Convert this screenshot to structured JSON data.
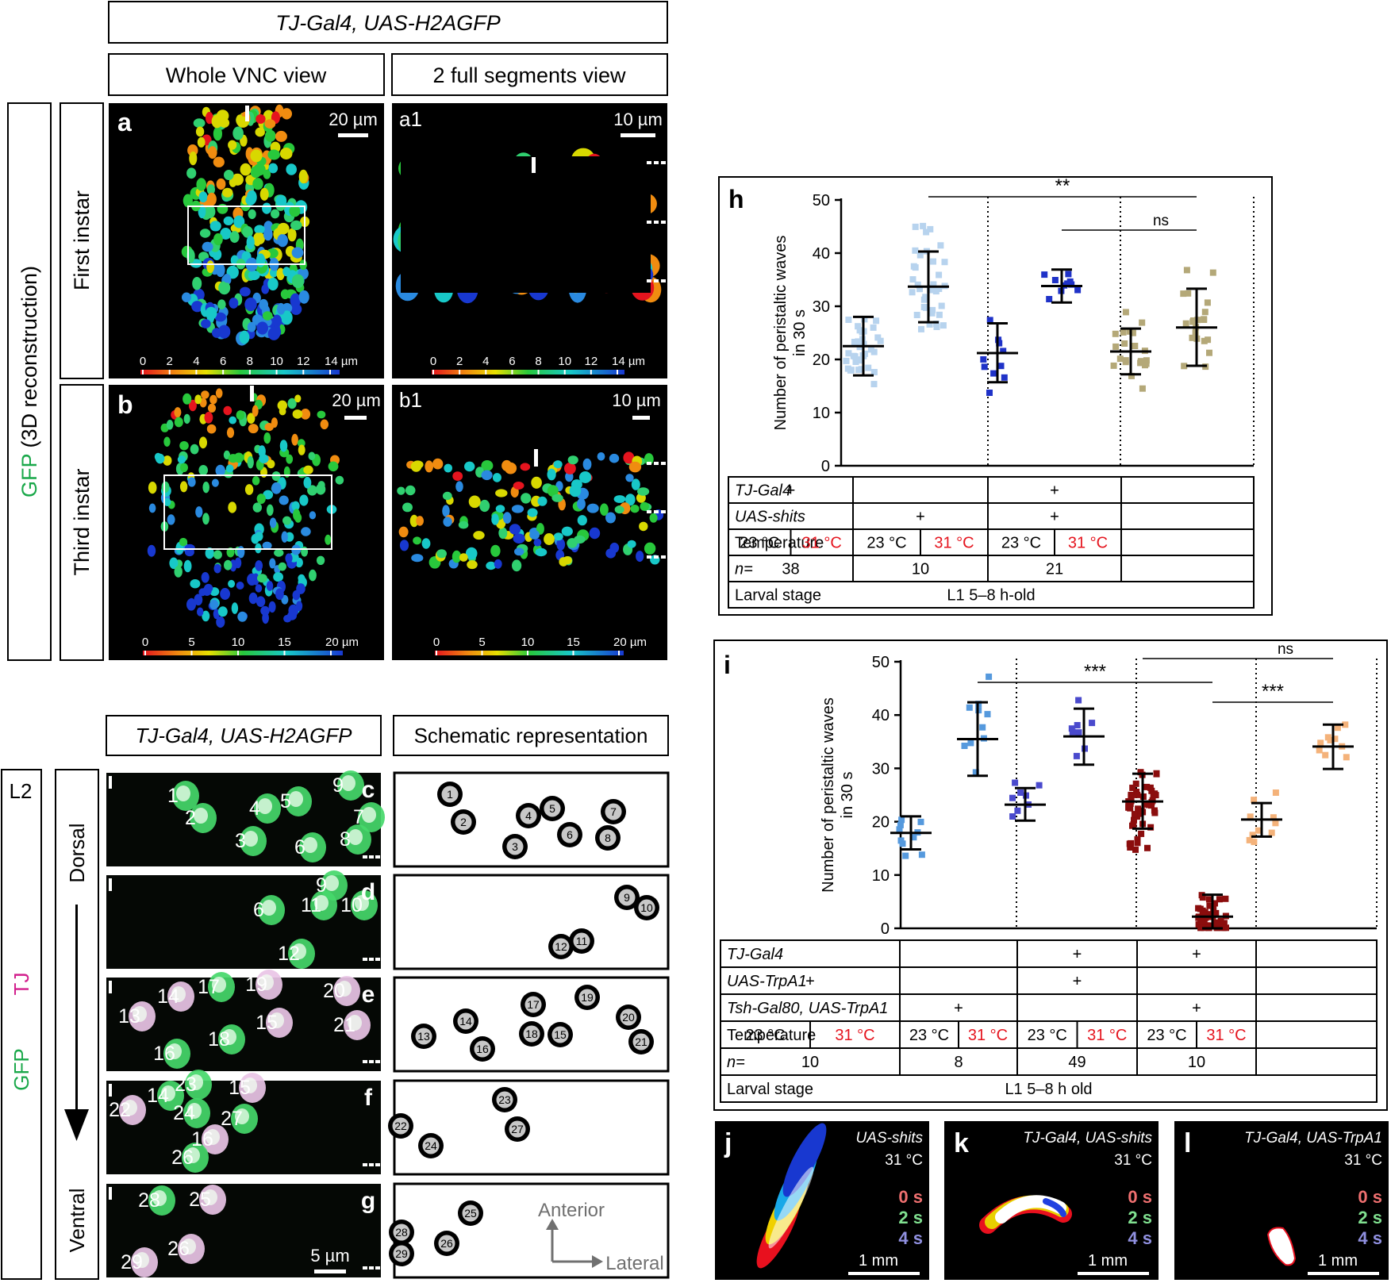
{
  "top": {
    "genotype": "TJ-Gal4, UAS-H2AGFP",
    "col_whole": "Whole VNC view",
    "col_segments": "2 full segments view",
    "side_label_gfp": "GFP",
    "side_label_rest": " (3D reconstruction)",
    "row_first": "First instar",
    "row_third": "Third instar"
  },
  "panels_top": {
    "a": {
      "letter": "a",
      "scale": "20 µm",
      "ticks": [
        "0",
        "2",
        "4",
        "6",
        "8",
        "10",
        "12",
        "14 µm"
      ]
    },
    "a1": {
      "letter": "a1",
      "scale": "10 µm",
      "ticks": [
        "0",
        "2",
        "4",
        "6",
        "8",
        "10",
        "12",
        "14 µm"
      ]
    },
    "b": {
      "letter": "b",
      "scale": "20 µm",
      "ticks": [
        "0",
        "5",
        "10",
        "15",
        "20 µm"
      ]
    },
    "b1": {
      "letter": "b1",
      "scale": "10 µm",
      "ticks": [
        "0",
        "5",
        "10",
        "15",
        "20 µm"
      ]
    }
  },
  "bottom_left": {
    "title_left": "TJ-Gal4, UAS-H2AGFP",
    "title_right": "Schematic representation",
    "stage": "L2",
    "tj": "TJ",
    "gfp": "GFP",
    "dorsal": "Dorsal",
    "ventral": "Ventral",
    "scale": "5 µm",
    "anterior": "Anterior",
    "lateral": "Lateral",
    "rows": [
      {
        "letter": "c",
        "cells": [
          "1",
          "2",
          "3",
          "4",
          "5",
          "6",
          "7",
          "8",
          "9"
        ]
      },
      {
        "letter": "d",
        "cells": [
          "6",
          "9",
          "10",
          "11",
          "12"
        ]
      },
      {
        "letter": "e",
        "cells": [
          "13",
          "14",
          "15",
          "16",
          "17",
          "18",
          "19",
          "20",
          "21"
        ]
      },
      {
        "letter": "f",
        "cells": [
          "14",
          "15",
          "16",
          "22",
          "23",
          "24",
          "26",
          "27"
        ]
      },
      {
        "letter": "g",
        "cells": [
          "25",
          "26",
          "28",
          "29"
        ]
      }
    ]
  },
  "chart_data": [
    {
      "panel": "h",
      "type": "scatter",
      "ylabel": "Number of peristaltic waves in 30 s",
      "ylim": [
        0,
        50
      ],
      "yticks": [
        0,
        10,
        20,
        30,
        40,
        50
      ],
      "groups": [
        {
          "genotype": "TJ-Gal4",
          "temperature": "23 °C",
          "mean": 22.5,
          "sd_low": 17.0,
          "sd_high": 28.0,
          "color": "#b7d3ee"
        },
        {
          "genotype": "TJ-Gal4",
          "temperature": "31 °C",
          "mean": 33.7,
          "sd_low": 27.0,
          "sd_high": 40.3,
          "color": "#b7d3ee"
        },
        {
          "genotype": "UAS-shits",
          "temperature": "23 °C",
          "mean": 21.2,
          "sd_low": 15.7,
          "sd_high": 26.8,
          "color": "#1f32c8"
        },
        {
          "genotype": "UAS-shits",
          "temperature": "31 °C",
          "mean": 33.8,
          "sd_low": 30.7,
          "sd_high": 36.9,
          "color": "#1f32c8"
        },
        {
          "genotype": "TJ-Gal4, UAS-shits",
          "temperature": "23 °C",
          "mean": 21.5,
          "sd_low": 17.2,
          "sd_high": 25.8,
          "color": "#b4a878"
        },
        {
          "genotype": "TJ-Gal4, UAS-shits",
          "temperature": "31 °C",
          "mean": 26.0,
          "sd_low": 18.8,
          "sd_high": 33.3,
          "color": "#b4a878"
        }
      ],
      "significance": [
        {
          "from_group": 2,
          "to_group": 6,
          "label": "**"
        },
        {
          "from_group": 4,
          "to_group": 6,
          "label": "ns"
        }
      ],
      "table": {
        "rows": [
          {
            "label": "TJ-Gal4",
            "italic": true,
            "cells": [
              "+",
              "",
              "+"
            ]
          },
          {
            "label": "UAS-shits",
            "italic": true,
            "cells": [
              "",
              "+",
              "+"
            ]
          },
          {
            "label": "Temperature",
            "italic": false,
            "temps": [
              "23 °C",
              "31 °C"
            ]
          },
          {
            "label": "n=",
            "italic": true,
            "cells": [
              "38",
              "10",
              "21"
            ]
          },
          {
            "label": "Larval stage",
            "italic": false,
            "merged": "L1   5–8 h-old"
          }
        ]
      }
    },
    {
      "panel": "i",
      "type": "scatter",
      "ylabel": "Number of peristaltic waves in 30 s",
      "ylim": [
        0,
        50
      ],
      "yticks": [
        0,
        10,
        20,
        30,
        40,
        50
      ],
      "groups": [
        {
          "genotype": "UAS-TrpA1",
          "temperature": "23 °C",
          "mean": 17.9,
          "sd_low": 14.8,
          "sd_high": 21.0,
          "color": "#5599dd"
        },
        {
          "genotype": "UAS-TrpA1",
          "temperature": "31 °C",
          "mean": 35.5,
          "sd_low": 28.6,
          "sd_high": 42.4,
          "color": "#5599dd"
        },
        {
          "genotype": "Tsh-Gal80, UAS-TrpA1",
          "temperature": "23 °C",
          "mean": 23.2,
          "sd_low": 20.2,
          "sd_high": 26.3,
          "color": "#4a4acd"
        },
        {
          "genotype": "Tsh-Gal80, UAS-TrpA1",
          "temperature": "31 °C",
          "mean": 36.0,
          "sd_low": 30.7,
          "sd_high": 41.2,
          "color": "#4a4acd"
        },
        {
          "genotype": "TJ-Gal4, UAS-TrpA1",
          "temperature": "23 °C",
          "mean": 23.8,
          "sd_low": 18.7,
          "sd_high": 29.0,
          "color": "#8b0d0d"
        },
        {
          "genotype": "TJ-Gal4, UAS-TrpA1",
          "temperature": "31 °C",
          "mean": 2.2,
          "sd_low": 0.0,
          "sd_high": 6.3,
          "color": "#8b0d0d"
        },
        {
          "genotype": "TJ-Gal4, Tsh-Gal80, UAS-TrpA1",
          "temperature": "23 °C",
          "mean": 20.4,
          "sd_low": 17.2,
          "sd_high": 23.5,
          "color": "#f4b27a"
        },
        {
          "genotype": "TJ-Gal4, Tsh-Gal80, UAS-TrpA1",
          "temperature": "31 °C",
          "mean": 34.1,
          "sd_low": 29.9,
          "sd_high": 38.2,
          "color": "#f4b27a"
        }
      ],
      "significance": [
        {
          "from_group": 2,
          "to_group": 6,
          "label": "***"
        },
        {
          "from_group": 6,
          "to_group": 8,
          "label": "***"
        },
        {
          "from_group": 5,
          "to_group": 8,
          "label": "ns"
        }
      ],
      "table": {
        "rows": [
          {
            "label": "TJ-Gal4",
            "italic": true,
            "cells": [
              "",
              "",
              "+",
              "+"
            ]
          },
          {
            "label": "UAS-TrpA1",
            "italic": true,
            "cells": [
              "+",
              "",
              "+",
              ""
            ]
          },
          {
            "label": "Tsh-Gal80, UAS-TrpA1",
            "italic": true,
            "cells": [
              "",
              "+",
              "",
              "+"
            ]
          },
          {
            "label": "Temperature",
            "italic": false,
            "temps": [
              "23 °C",
              "31 °C"
            ]
          },
          {
            "label": "n=",
            "italic": true,
            "cells": [
              "10",
              "8",
              "49",
              "10"
            ]
          },
          {
            "label": "Larval stage",
            "italic": false,
            "merged": "L1   5–8 h old"
          }
        ]
      }
    }
  ],
  "tracks": [
    {
      "letter": "j",
      "genotype": "UAS-shits",
      "temperature": "31 °C",
      "times": [
        "0 s",
        "2 s",
        "4 s"
      ],
      "scale": "1 mm"
    },
    {
      "letter": "k",
      "genotype": "TJ-Gal4, UAS-shits",
      "temperature": "31 °C",
      "times": [
        "0 s",
        "2 s",
        "4 s"
      ],
      "scale": "1 mm"
    },
    {
      "letter": "l",
      "genotype": "TJ-Gal4, UAS-TrpA1",
      "temperature": "31 °C",
      "times": [
        "0 s",
        "2 s",
        "4 s"
      ],
      "scale": "1 mm"
    }
  ],
  "colors": {
    "gfp_green": "#1aa84a",
    "tj_magenta": "#d21e8c",
    "hot_red": "#e8101e",
    "ice": "#b7d3ee"
  }
}
